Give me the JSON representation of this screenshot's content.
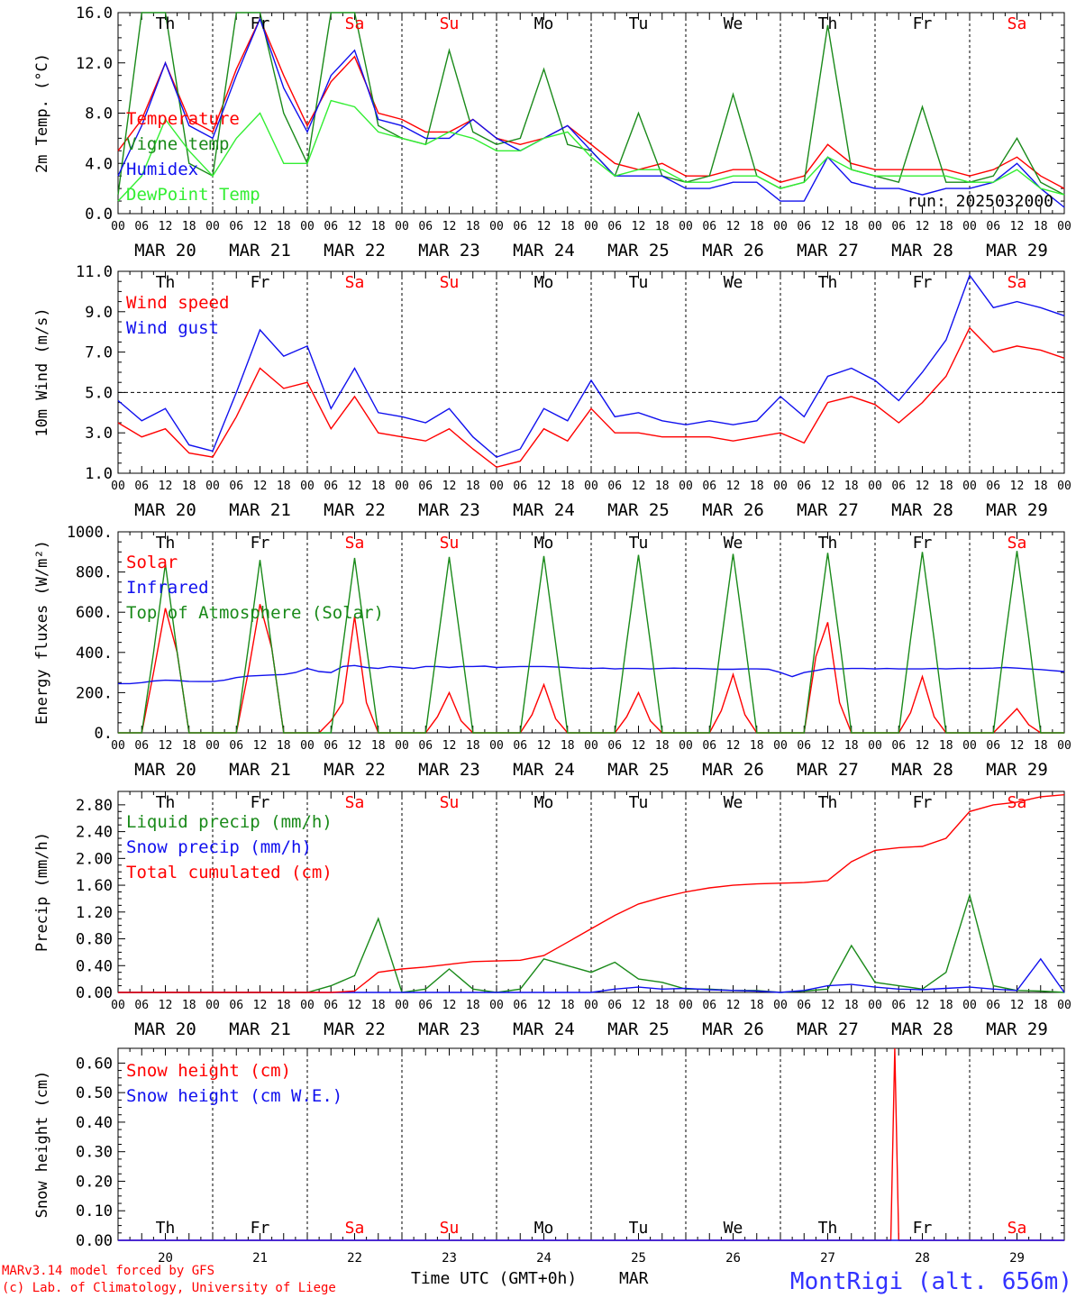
{
  "figure": {
    "footer_line1": "MARv3.14 model forced by GFS",
    "footer_line2": "(c) Lab. of Climatology, University of Liege",
    "xaxis_title": "Time UTC (GMT+0h)",
    "month_label": "MAR",
    "station": "MontRigi (alt. 656m)",
    "run_label": "run: 2025032000"
  },
  "days": {
    "weekday_labels": [
      "Th",
      "Fr",
      "Sa",
      "Su",
      "Mo",
      "Tu",
      "We",
      "Th",
      "Fr",
      "Sa"
    ],
    "weekend_flags": [
      false,
      false,
      true,
      true,
      false,
      false,
      false,
      false,
      false,
      true
    ],
    "date_labels": [
      "MAR 20",
      "MAR 21",
      "MAR 22",
      "MAR 23",
      "MAR 24",
      "MAR 25",
      "MAR 26",
      "MAR 27",
      "MAR 28",
      "MAR 29"
    ],
    "day_numbers": [
      "20",
      "21",
      "22",
      "23",
      "24",
      "25",
      "26",
      "27",
      "28",
      "29"
    ],
    "hour_labels": [
      "00",
      "06",
      "12",
      "18"
    ]
  },
  "colors": {
    "red": "#ff0000",
    "green": "#1a8a1a",
    "blue": "#1010ee",
    "lightgreen": "#33ee33",
    "weekend": "#ff0000",
    "station": "#3333ff"
  },
  "chart_data": [
    {
      "type": "line",
      "id": "temp",
      "ylabel": "2m Temp. (°C)",
      "ylim": [
        0,
        16
      ],
      "yticks": [
        "0.0",
        "4.0",
        "8.0",
        "12.0",
        "16.0"
      ],
      "x_unit": "hours since MAR 20 00 UTC",
      "x": [
        0,
        6,
        12,
        18,
        24,
        30,
        36,
        42,
        48,
        54,
        60,
        66,
        72,
        78,
        84,
        90,
        96,
        102,
        108,
        114,
        120,
        126,
        132,
        138,
        144,
        150,
        156,
        162,
        168,
        174,
        180,
        186,
        192,
        198,
        204,
        210,
        216,
        222,
        228,
        234,
        240
      ],
      "series": [
        {
          "name": "Temperature",
          "color": "red",
          "values": [
            5.0,
            7.5,
            12.0,
            7.5,
            6.5,
            11.5,
            15.5,
            11.0,
            7.0,
            10.5,
            12.5,
            8.0,
            7.5,
            6.5,
            6.5,
            7.5,
            6.0,
            5.5,
            6.0,
            7.0,
            5.5,
            4.0,
            3.5,
            4.0,
            3.0,
            3.0,
            3.5,
            3.5,
            2.5,
            3.0,
            5.5,
            4.0,
            3.5,
            3.5,
            3.5,
            3.5,
            3.0,
            3.5,
            4.5,
            3.0,
            2.0
          ]
        },
        {
          "name": "Vigne temp",
          "color": "green",
          "values": [
            1.5,
            16.0,
            16.0,
            4.0,
            3.0,
            16.0,
            16.0,
            8.0,
            4.0,
            16.0,
            16.0,
            7.0,
            6.0,
            5.5,
            13.0,
            6.5,
            5.5,
            6.0,
            11.5,
            5.5,
            5.0,
            3.0,
            8.0,
            3.0,
            2.5,
            3.0,
            9.5,
            3.0,
            2.0,
            2.5,
            15.0,
            3.5,
            3.0,
            2.5,
            8.5,
            2.5,
            2.5,
            3.0,
            6.0,
            2.5,
            1.5
          ]
        },
        {
          "name": "Humidex",
          "color": "blue",
          "values": [
            3.0,
            7.0,
            12.0,
            7.0,
            6.0,
            11.0,
            15.5,
            10.0,
            6.5,
            11.0,
            13.0,
            7.5,
            7.0,
            6.0,
            6.0,
            7.5,
            6.0,
            5.0,
            6.0,
            7.0,
            5.0,
            3.0,
            3.0,
            3.0,
            2.0,
            2.0,
            2.5,
            2.5,
            1.0,
            1.0,
            4.5,
            2.5,
            2.0,
            2.0,
            1.5,
            2.0,
            2.0,
            2.5,
            4.0,
            2.0,
            0.5
          ]
        },
        {
          "name": "DewPoint Temp",
          "color": "lightgreen",
          "values": [
            1.0,
            3.0,
            7.5,
            5.0,
            3.0,
            6.0,
            8.0,
            4.0,
            4.0,
            9.0,
            8.5,
            6.5,
            6.0,
            5.5,
            6.5,
            6.0,
            5.0,
            5.0,
            6.0,
            6.5,
            4.5,
            3.0,
            3.5,
            3.5,
            2.5,
            2.5,
            3.0,
            3.0,
            2.0,
            2.5,
            4.5,
            3.5,
            3.0,
            3.0,
            3.0,
            3.0,
            2.5,
            2.5,
            3.5,
            2.0,
            1.5
          ]
        }
      ]
    },
    {
      "type": "line",
      "id": "wind",
      "ylabel": "10m Wind (m/s)",
      "ylim": [
        1,
        11
      ],
      "yticks": [
        "1.0",
        "3.0",
        "5.0",
        "7.0",
        "9.0",
        "11.0"
      ],
      "reference_line": 5,
      "x_unit": "hours since MAR 20 00 UTC",
      "x": [
        0,
        6,
        12,
        18,
        24,
        30,
        36,
        42,
        48,
        54,
        60,
        66,
        72,
        78,
        84,
        90,
        96,
        102,
        108,
        114,
        120,
        126,
        132,
        138,
        144,
        150,
        156,
        162,
        168,
        174,
        180,
        186,
        192,
        198,
        204,
        210,
        216,
        222,
        228,
        234,
        240
      ],
      "series": [
        {
          "name": "Wind speed",
          "color": "red",
          "values": [
            3.5,
            2.8,
            3.2,
            2.0,
            1.8,
            3.8,
            6.2,
            5.2,
            5.5,
            3.2,
            4.8,
            3.0,
            2.8,
            2.6,
            3.2,
            2.2,
            1.3,
            1.6,
            3.2,
            2.6,
            4.2,
            3.0,
            3.0,
            2.8,
            2.8,
            2.8,
            2.6,
            2.8,
            3.0,
            2.5,
            4.5,
            4.8,
            4.4,
            3.5,
            4.5,
            5.8,
            8.2,
            7.0,
            7.3,
            7.1,
            6.7
          ]
        },
        {
          "name": "Wind gust",
          "color": "blue",
          "values": [
            4.6,
            3.6,
            4.2,
            2.4,
            2.1,
            5.0,
            8.1,
            6.8,
            7.3,
            4.2,
            6.2,
            4.0,
            3.8,
            3.5,
            4.2,
            2.8,
            1.8,
            2.2,
            4.2,
            3.6,
            5.6,
            3.8,
            4.0,
            3.6,
            3.4,
            3.6,
            3.4,
            3.6,
            4.8,
            3.8,
            5.8,
            6.2,
            5.6,
            4.6,
            6.0,
            7.6,
            10.8,
            9.2,
            9.5,
            9.2,
            8.8
          ]
        }
      ]
    },
    {
      "type": "line",
      "id": "energy",
      "ylabel": "Energy fluxes (W/m²)",
      "ylim": [
        0,
        1000
      ],
      "yticks": [
        "0.",
        "200.",
        "400.",
        "600.",
        "800.",
        "1000."
      ],
      "x_unit": "hours since MAR 20 00 UTC",
      "x": [
        0,
        3,
        6,
        9,
        12,
        15,
        18,
        21,
        24,
        27,
        30,
        33,
        36,
        39,
        42,
        45,
        48,
        51,
        54,
        57,
        60,
        63,
        66,
        69,
        72,
        75,
        78,
        81,
        84,
        87,
        90,
        93,
        96,
        99,
        102,
        105,
        108,
        111,
        114,
        117,
        120,
        123,
        126,
        129,
        132,
        135,
        138,
        141,
        144,
        147,
        150,
        153,
        156,
        159,
        162,
        165,
        168,
        171,
        174,
        177,
        180,
        183,
        186,
        189,
        192,
        195,
        198,
        201,
        204,
        207,
        210,
        213,
        216,
        219,
        222,
        225,
        228,
        231,
        234,
        237,
        240
      ],
      "series": [
        {
          "name": "Solar",
          "color": "red",
          "values": [
            0,
            0,
            0,
            300,
            620,
            400,
            0,
            0,
            0,
            0,
            0,
            300,
            640,
            420,
            0,
            0,
            0,
            0,
            60,
            150,
            580,
            150,
            0,
            0,
            0,
            0,
            0,
            80,
            200,
            60,
            0,
            0,
            0,
            0,
            0,
            90,
            240,
            70,
            0,
            0,
            0,
            0,
            0,
            80,
            200,
            60,
            0,
            0,
            0,
            0,
            0,
            110,
            290,
            90,
            0,
            0,
            0,
            0,
            0,
            380,
            550,
            150,
            0,
            0,
            0,
            0,
            0,
            100,
            280,
            80,
            0,
            0,
            0,
            0,
            0,
            60,
            120,
            40,
            0,
            0,
            0
          ]
        },
        {
          "name": "Infrared",
          "color": "blue",
          "values": [
            245,
            245,
            250,
            258,
            262,
            260,
            256,
            255,
            255,
            262,
            275,
            282,
            285,
            288,
            290,
            300,
            320,
            305,
            300,
            330,
            335,
            325,
            320,
            330,
            325,
            320,
            330,
            330,
            325,
            330,
            330,
            332,
            325,
            328,
            330,
            330,
            330,
            328,
            325,
            322,
            320,
            322,
            318,
            320,
            320,
            318,
            320,
            322,
            320,
            320,
            318,
            316,
            316,
            318,
            318,
            316,
            300,
            280,
            300,
            310,
            320,
            318,
            320,
            320,
            318,
            320,
            318,
            318,
            318,
            320,
            318,
            320,
            320,
            320,
            322,
            325,
            322,
            318,
            315,
            310,
            305
          ]
        },
        {
          "name": "Top of Atmosphere (Solar)",
          "color": "green",
          "values": [
            0,
            0,
            0,
            400,
            840,
            400,
            0,
            0,
            0,
            0,
            0,
            420,
            860,
            420,
            0,
            0,
            0,
            0,
            0,
            430,
            870,
            430,
            0,
            0,
            0,
            0,
            0,
            440,
            875,
            440,
            0,
            0,
            0,
            0,
            0,
            445,
            880,
            445,
            0,
            0,
            0,
            0,
            0,
            450,
            885,
            450,
            0,
            0,
            0,
            0,
            0,
            455,
            890,
            455,
            0,
            0,
            0,
            0,
            0,
            460,
            895,
            460,
            0,
            0,
            0,
            0,
            0,
            465,
            900,
            465,
            0,
            0,
            0,
            0,
            0,
            470,
            905,
            470,
            0,
            0,
            0
          ]
        }
      ]
    },
    {
      "type": "line",
      "id": "precip",
      "ylabel": "Precip (mm/h)",
      "ylim": [
        0,
        3.0
      ],
      "yticks": [
        "0.00",
        "0.40",
        "0.80",
        "1.20",
        "1.60",
        "2.00",
        "2.40",
        "2.80"
      ],
      "x_unit": "hours since MAR 20 00 UTC",
      "x": [
        0,
        6,
        12,
        18,
        24,
        30,
        36,
        42,
        48,
        54,
        60,
        66,
        72,
        78,
        84,
        90,
        96,
        102,
        108,
        114,
        120,
        126,
        132,
        138,
        144,
        150,
        156,
        162,
        168,
        174,
        180,
        186,
        192,
        198,
        204,
        210,
        216,
        222,
        228,
        234,
        240
      ],
      "series": [
        {
          "name": "Liquid precip (mm/h)",
          "color": "green",
          "values": [
            0,
            0,
            0,
            0,
            0,
            0,
            0,
            0,
            0,
            0.1,
            0.25,
            1.1,
            0,
            0.05,
            0.35,
            0.05,
            0,
            0.05,
            0.5,
            0.4,
            0.3,
            0.45,
            0.2,
            0.15,
            0.05,
            0.05,
            0.03,
            0.03,
            0,
            0.02,
            0.05,
            0.7,
            0.15,
            0.1,
            0.05,
            0.3,
            1.45,
            0.1,
            0.03,
            0.02,
            0
          ]
        },
        {
          "name": "Snow precip (mm/h)",
          "color": "blue",
          "values": [
            0,
            0,
            0,
            0,
            0,
            0,
            0,
            0,
            0,
            0,
            0,
            0,
            0,
            0,
            0,
            0,
            0,
            0,
            0,
            0,
            0,
            0.05,
            0.08,
            0.05,
            0.06,
            0.04,
            0.03,
            0.02,
            0,
            0.03,
            0.1,
            0.12,
            0.08,
            0.05,
            0.04,
            0.06,
            0.08,
            0.05,
            0.03,
            0.5,
            0
          ]
        },
        {
          "name": "Total cumulated (cm)",
          "color": "red",
          "values": [
            0,
            0,
            0,
            0,
            0,
            0,
            0,
            0,
            0,
            0,
            0.02,
            0.3,
            0.35,
            0.38,
            0.42,
            0.46,
            0.47,
            0.48,
            0.55,
            0.75,
            0.95,
            1.15,
            1.32,
            1.42,
            1.5,
            1.56,
            1.6,
            1.62,
            1.63,
            1.64,
            1.67,
            1.95,
            2.12,
            2.16,
            2.18,
            2.3,
            2.7,
            2.8,
            2.84,
            2.92,
            2.95
          ]
        }
      ]
    },
    {
      "type": "line",
      "id": "snow",
      "ylabel": "Snow height (cm)",
      "ylim": [
        0,
        0.65
      ],
      "yticks": [
        "0.00",
        "0.10",
        "0.20",
        "0.30",
        "0.40",
        "0.50",
        "0.60"
      ],
      "x_unit": "hours since MAR 20 00 UTC",
      "x": [
        0,
        24,
        48,
        72,
        96,
        120,
        144,
        168,
        192,
        196,
        197,
        198,
        200,
        216,
        240
      ],
      "series": [
        {
          "name": "Snow height (cm)",
          "color": "red",
          "values": [
            0,
            0,
            0,
            0,
            0,
            0,
            0,
            0,
            0,
            0,
            0.65,
            0,
            0,
            0,
            0
          ]
        },
        {
          "name": "Snow height (cm W.E.)",
          "color": "blue",
          "values": [
            0,
            0,
            0,
            0,
            0,
            0,
            0,
            0,
            0,
            0,
            0,
            0,
            0,
            0,
            0
          ]
        }
      ]
    }
  ]
}
